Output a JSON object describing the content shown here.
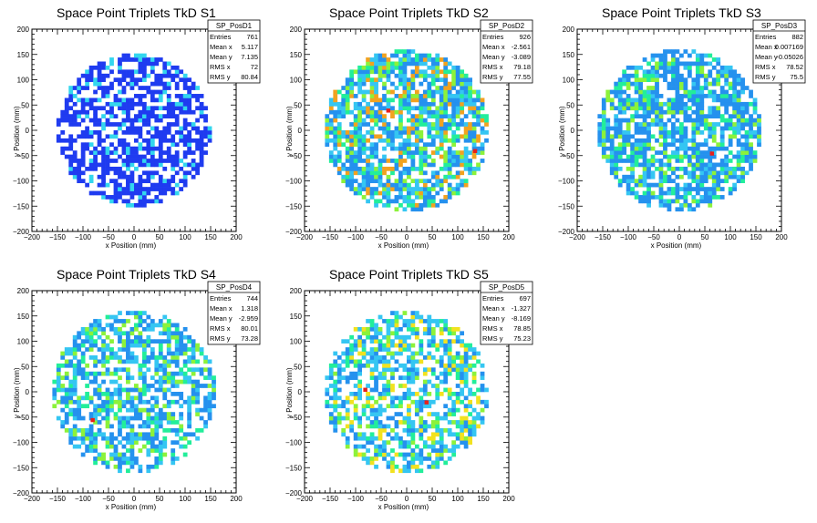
{
  "chart_data": [
    {
      "type": "heatmap",
      "name": "SP_PosD1",
      "title": "Space Point Triplets TkD S1",
      "xlabel": "x Position (mm)",
      "ylabel": "y Position (mm)",
      "xlim": [
        -200,
        200
      ],
      "ylim": [
        -200,
        200
      ],
      "xticks": [
        "−200",
        "−150",
        "−100",
        "−50",
        "0",
        "50",
        "100",
        "150",
        "200"
      ],
      "yticks": [
        "−200",
        "−150",
        "−100",
        "−50",
        "0",
        "50",
        "100",
        "150",
        "200"
      ],
      "stats": [
        {
          "label": "Entries",
          "value": "761"
        },
        {
          "label": "Mean x",
          "value": "5.117"
        },
        {
          "label": "Mean y",
          "value": "7.135"
        },
        {
          "label": "RMS x",
          "value": "72"
        },
        {
          "label": "RMS y",
          "value": "80.84"
        }
      ],
      "radius": 150,
      "fill": 0.62,
      "palette": [
        "#1f3bf0",
        "#1f3bf0",
        "#1f3bf0",
        "#1f3bf0",
        "#1f3bf0",
        "#33d6ee"
      ],
      "hot": [],
      "seed": 11
    },
    {
      "type": "heatmap",
      "name": "SP_PosD2",
      "title": "Space Point Triplets TkD S2",
      "xlabel": "x Position (mm)",
      "ylabel": "y Position (mm)",
      "xlim": [
        -200,
        200
      ],
      "ylim": [
        -200,
        200
      ],
      "xticks": [
        "−200",
        "−150",
        "−100",
        "−50",
        "0",
        "50",
        "100",
        "150",
        "200"
      ],
      "yticks": [
        "−200",
        "−150",
        "−100",
        "−50",
        "0",
        "50",
        "100",
        "150",
        "200"
      ],
      "stats": [
        {
          "label": "Entries",
          "value": "926"
        },
        {
          "label": "Mean x",
          "value": "-2.561"
        },
        {
          "label": "Mean y",
          "value": "-3.089"
        },
        {
          "label": "RMS x",
          "value": "79.18"
        },
        {
          "label": "RMS y",
          "value": "77.55"
        }
      ],
      "radius": 160,
      "fill": 0.72,
      "palette": [
        "#2591ee",
        "#2591ee",
        "#2591ee",
        "#35c6f2",
        "#35c6f2",
        "#22ee9a",
        "#8cf23a",
        "#f2a21f"
      ],
      "hot": [
        [
          130,
          -45
        ],
        [
          -40,
          35
        ]
      ],
      "seed": 23
    },
    {
      "type": "heatmap",
      "name": "SP_PosD3",
      "title": "Space Point Triplets TkD S3",
      "xlabel": "x Position (mm)",
      "ylabel": "y Position (mm)",
      "xlim": [
        -200,
        200
      ],
      "ylim": [
        -200,
        200
      ],
      "xticks": [
        "−200",
        "−150",
        "−100",
        "−50",
        "0",
        "50",
        "100",
        "150",
        "200"
      ],
      "yticks": [
        "−200",
        "−150",
        "−100",
        "−50",
        "0",
        "50",
        "100",
        "150",
        "200"
      ],
      "stats": [
        {
          "label": "Entries",
          "value": "882"
        },
        {
          "label": "Mean x",
          "value": "0.007169"
        },
        {
          "label": "Mean y",
          "value": "-0.05026"
        },
        {
          "label": "RMS x",
          "value": "78.52"
        },
        {
          "label": "RMS y",
          "value": "75.5"
        }
      ],
      "radius": 160,
      "fill": 0.7,
      "palette": [
        "#2591ee",
        "#2591ee",
        "#2591ee",
        "#2591ee",
        "#35c6f2",
        "#22ee9a",
        "#8cf23a"
      ],
      "hot": [
        [
          60,
          -50
        ]
      ],
      "seed": 37
    },
    {
      "type": "heatmap",
      "name": "SP_PosD4",
      "title": "Space Point Triplets TkD S4",
      "xlabel": "x Position (mm)",
      "ylabel": "y Position (mm)",
      "xlim": [
        -200,
        200
      ],
      "ylim": [
        -200,
        200
      ],
      "xticks": [
        "−200",
        "−150",
        "−100",
        "−50",
        "0",
        "50",
        "100",
        "150",
        "200"
      ],
      "yticks": [
        "−200",
        "−150",
        "−100",
        "−50",
        "0",
        "50",
        "100",
        "150",
        "200"
      ],
      "stats": [
        {
          "label": "Entries",
          "value": "744"
        },
        {
          "label": "Mean x",
          "value": "1.318"
        },
        {
          "label": "Mean y",
          "value": "-2.959"
        },
        {
          "label": "RMS x",
          "value": "80.01"
        },
        {
          "label": "RMS y",
          "value": "73.28"
        }
      ],
      "radius": 160,
      "fill": 0.6,
      "palette": [
        "#2591ee",
        "#2591ee",
        "#2591ee",
        "#35c6f2",
        "#35c6f2",
        "#22ee9a",
        "#8cf23a"
      ],
      "hot": [
        [
          -85,
          -60
        ]
      ],
      "seed": 41
    },
    {
      "type": "heatmap",
      "name": "SP_PosD5",
      "title": "Space Point Triplets TkD S5",
      "xlabel": "x Position (mm)",
      "ylabel": "y Position (mm)",
      "xlim": [
        -200,
        200
      ],
      "ylim": [
        -200,
        200
      ],
      "xticks": [
        "−200",
        "−150",
        "−100",
        "−50",
        "0",
        "50",
        "100",
        "150",
        "200"
      ],
      "yticks": [
        "−200",
        "−150",
        "−100",
        "−50",
        "0",
        "50",
        "100",
        "150",
        "200"
      ],
      "stats": [
        {
          "label": "Entries",
          "value": "697"
        },
        {
          "label": "Mean x",
          "value": "-1.327"
        },
        {
          "label": "Mean y",
          "value": "-8.169"
        },
        {
          "label": "RMS x",
          "value": "78.85"
        },
        {
          "label": "RMS y",
          "value": "75.23"
        }
      ],
      "radius": 160,
      "fill": 0.58,
      "palette": [
        "#2591ee",
        "#2591ee",
        "#35c6f2",
        "#35c6f2",
        "#35c6f2",
        "#22ee9a",
        "#8cf23a",
        "#f2e21f"
      ],
      "hot": [
        [
          -85,
          0
        ],
        [
          35,
          -25
        ]
      ],
      "seed": 53
    }
  ]
}
